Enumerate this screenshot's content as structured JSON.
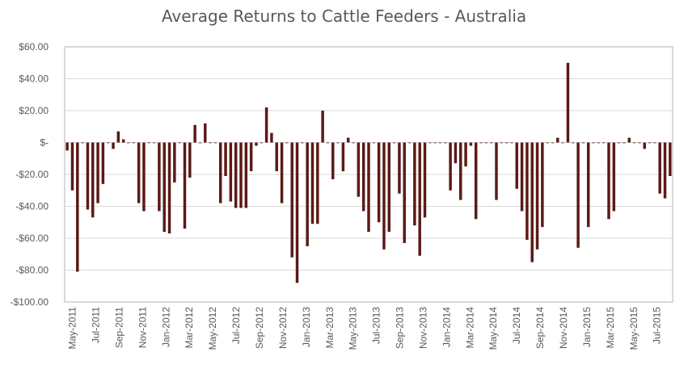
{
  "chart_data": {
    "type": "bar",
    "title": "Average Returns to Cattle Feeders - Australia",
    "xlabel": "",
    "ylabel": "",
    "ylim": [
      -100,
      60
    ],
    "yticks": [
      60,
      40,
      20,
      0,
      -20,
      -40,
      -60,
      -80,
      -100
    ],
    "ytick_labels": [
      "$60.00",
      "$40.00",
      "$20.00",
      "$-",
      "-$20.00",
      "-$40.00",
      "-$60.00",
      "-$80.00",
      "-$100.00"
    ],
    "xtick_labels": [
      "May-2011",
      "Jul-2011",
      "Sep-2011",
      "Nov-2011",
      "Jan-2012",
      "Mar-2012",
      "May-2012",
      "Jul-2012",
      "Sep-2012",
      "Nov-2012",
      "Jan-2013",
      "Mar-2013",
      "May-2013",
      "Jul-2013",
      "Sep-2013",
      "Nov-2013",
      "Jan-2014",
      "Mar-2014",
      "May-2014",
      "Jul-2014",
      "Sep-2014",
      "Nov-2014",
      "Jan-2015",
      "Mar-2015",
      "May-2015",
      "Jul-2015"
    ],
    "grid": true,
    "legend": "none",
    "bar_color": "#5b1a16",
    "values": [
      -5,
      -30,
      -81,
      0,
      -42,
      -47,
      -38,
      -26,
      0,
      -4,
      7,
      2,
      0,
      0,
      -38,
      -43,
      0,
      0,
      -43,
      -56,
      -57,
      -25,
      0,
      -54,
      -22,
      11,
      0,
      12,
      0,
      0,
      -38,
      -21,
      -37,
      -41,
      -41,
      -41,
      -18,
      -2,
      0,
      22,
      6,
      -18,
      -38,
      0,
      -72,
      -88,
      0,
      -65,
      -51,
      -51,
      20,
      0,
      -23,
      0,
      -18,
      3,
      0,
      -34,
      -43,
      -56,
      0,
      -50,
      -67,
      -56,
      0,
      -32,
      -63,
      0,
      -52,
      -71,
      -47,
      0,
      0,
      0,
      0,
      -30,
      -13,
      -36,
      -15,
      -2,
      -48,
      0,
      0,
      0,
      -36,
      0,
      0,
      0,
      -29,
      -43,
      -61,
      -75,
      -67,
      -53,
      0,
      0,
      3,
      0,
      50,
      0,
      -66,
      0,
      -53,
      0,
      0,
      0,
      -48,
      -43,
      0,
      0,
      3,
      0,
      0,
      -4,
      0,
      0,
      -32,
      -35,
      -21
    ]
  }
}
